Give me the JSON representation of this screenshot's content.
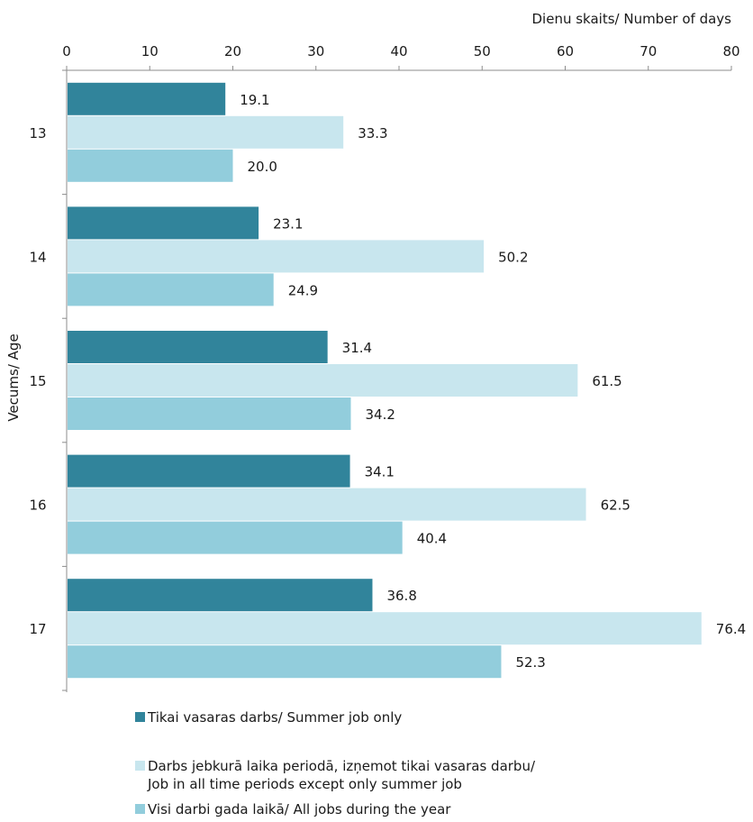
{
  "chart_data": {
    "type": "bar",
    "orientation": "horizontal",
    "xlabel": "Dienu skaits/ Number of days",
    "ylabel": "Vecums/ Age",
    "xlim": [
      0,
      80
    ],
    "x_ticks": [
      "0",
      "10",
      "20",
      "30",
      "40",
      "50",
      "60",
      "70",
      "80"
    ],
    "x_axis_position": "top",
    "categories": [
      "13",
      "14",
      "15",
      "16",
      "17"
    ],
    "series": [
      {
        "name": "Tikai vasaras darbs/  Summer job only",
        "color": "#31849B",
        "values": [
          19.1,
          23.1,
          31.4,
          34.1,
          36.8
        ]
      },
      {
        "name": "Darbs jebkurā laika periodā, izņemot tikai vasaras darbu/\nJob in all time periods except only summer job",
        "color": "#C8E6EE",
        "values": [
          33.3,
          50.2,
          61.5,
          62.5,
          76.4
        ]
      },
      {
        "name": "Visi darbi gada laikā/ All jobs during the year",
        "color": "#92CDDC",
        "values": [
          20.0,
          24.9,
          34.2,
          40.4,
          52.3
        ]
      }
    ],
    "data_labels": true,
    "grid": false,
    "legend_position": "bottom"
  }
}
